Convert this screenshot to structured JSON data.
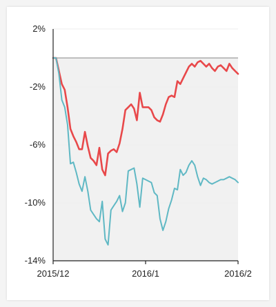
{
  "chart_data": {
    "type": "line",
    "title": "",
    "xlabel": "",
    "ylabel": "",
    "ylim": [
      -14,
      2
    ],
    "yticks": [
      2,
      -2,
      -6,
      -10,
      -14
    ],
    "ytick_labels": [
      "2%",
      "-2%",
      "-6%",
      "-10%",
      "-14%"
    ],
    "xlim": [
      0,
      64
    ],
    "xticks": [
      0,
      32,
      64
    ],
    "xtick_labels": [
      "2015/12",
      "2016/1",
      "2016/2"
    ],
    "baseline": 0,
    "grid": true,
    "legend": "none",
    "colors": {
      "series_red": "#e8484a",
      "series_teal": "#5fb8c4",
      "baseline": "#aaaaaa",
      "axis": "#222222",
      "grid": "#eeeeee",
      "shade": "#f1f1f1"
    },
    "series": [
      {
        "color": "#e8484a",
        "x": [
          0,
          1,
          2,
          3,
          4,
          5,
          6,
          7,
          8,
          9,
          10,
          11,
          12,
          13,
          14,
          15,
          16,
          17,
          18,
          19,
          20,
          21,
          22,
          23,
          24,
          25,
          26,
          27,
          28,
          29,
          30,
          31,
          32,
          33,
          34,
          35,
          36,
          37,
          38,
          39,
          40,
          41,
          42,
          43,
          44,
          45,
          46,
          47,
          48,
          49,
          50,
          51,
          52,
          53,
          54,
          55,
          56,
          57,
          58,
          59,
          60,
          61,
          62,
          63,
          64
        ],
        "values": [
          0,
          0,
          -0.9,
          -1.8,
          -2.2,
          -3.4,
          -4.9,
          -5.4,
          -5.8,
          -6.3,
          -6.3,
          -5.1,
          -6.1,
          -6.9,
          -7.1,
          -7.4,
          -6.2,
          -7.7,
          -8.1,
          -6.6,
          -6.4,
          -6.3,
          -6.5,
          -5.9,
          -4.9,
          -3.6,
          -3.4,
          -3.2,
          -3.5,
          -4.3,
          -2.4,
          -3.4,
          -3.4,
          -3.4,
          -3.6,
          -4.1,
          -4.3,
          -4.4,
          -3.9,
          -3.2,
          -2.7,
          -2.6,
          -2.7,
          -1.6,
          -1.8,
          -1.4,
          -1.0,
          -0.6,
          -0.4,
          -0.6,
          -0.3,
          -0.2,
          -0.4,
          -0.6,
          -0.4,
          -0.7,
          -0.9,
          -0.6,
          -0.5,
          -0.7,
          -0.9,
          -0.4,
          -0.7,
          -0.9,
          -1.1
        ]
      },
      {
        "color": "#5fb8c4",
        "x": [
          0,
          1,
          2,
          3,
          4,
          5,
          6,
          7,
          8,
          9,
          10,
          11,
          12,
          13,
          14,
          15,
          16,
          17,
          18,
          19,
          20,
          21,
          22,
          23,
          24,
          25,
          26,
          27,
          28,
          29,
          30,
          31,
          32,
          33,
          34,
          35,
          36,
          37,
          38,
          39,
          40,
          41,
          42,
          43,
          44,
          45,
          46,
          47,
          48,
          49,
          50,
          51,
          52,
          53,
          54,
          55,
          56,
          57,
          58,
          59,
          60,
          61,
          62,
          63,
          64
        ],
        "values": [
          0,
          0,
          -1.1,
          -2.9,
          -3.4,
          -4.6,
          -7.3,
          -7.2,
          -7.9,
          -8.7,
          -9.2,
          -8.2,
          -9.2,
          -10.5,
          -10.8,
          -11.1,
          -11.3,
          -9.9,
          -12.5,
          -12.9,
          -10.5,
          -10.2,
          -9.9,
          -9.5,
          -10.6,
          -10.0,
          -7.8,
          -7.7,
          -7.6,
          -8.7,
          -10.3,
          -8.3,
          -8.4,
          -8.5,
          -8.6,
          -9.3,
          -9.5,
          -11.1,
          -11.9,
          -11.3,
          -10.4,
          -9.8,
          -9.0,
          -9.1,
          -7.7,
          -8.1,
          -7.9,
          -7.4,
          -7.1,
          -7.4,
          -8.2,
          -8.8,
          -8.3,
          -8.4,
          -8.6,
          -8.7,
          -8.6,
          -8.5,
          -8.4,
          -8.4,
          -8.3,
          -8.2,
          -8.3,
          -8.4,
          -8.6
        ]
      }
    ]
  }
}
